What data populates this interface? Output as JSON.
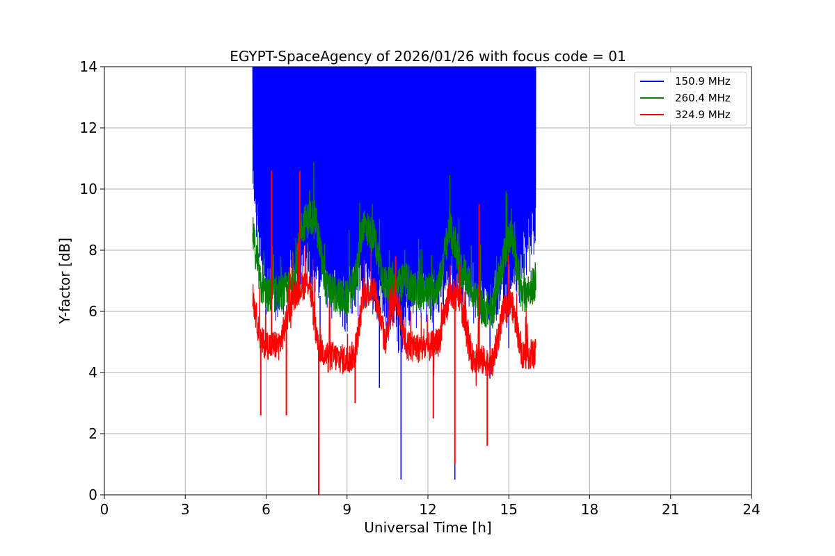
{
  "chart_data": {
    "type": "line",
    "title": "EGYPT-SpaceAgency of 2026/01/26 with focus code = 01",
    "xlabel": "Universal Time [h]",
    "ylabel": "Y-factor [dB]",
    "xlim": [
      0,
      24
    ],
    "ylim": [
      0,
      14
    ],
    "xticks": [
      0,
      3,
      6,
      9,
      12,
      15,
      18,
      21,
      24
    ],
    "yticks": [
      0,
      2,
      4,
      6,
      8,
      10,
      12,
      14
    ],
    "grid": true,
    "legend_position": "top-right",
    "series": [
      {
        "name": "150.9 MHz",
        "color": "#0000ff",
        "x": [
          5.5,
          6.0,
          6.5,
          7.0,
          7.5,
          8.0,
          8.5,
          9.0,
          9.5,
          10.0,
          10.5,
          11.0,
          11.5,
          12.0,
          12.5,
          13.0,
          13.5,
          14.0,
          14.5,
          15.0,
          15.5,
          16.0
        ],
        "low": [
          9.5,
          6.2,
          6.0,
          6.6,
          7.0,
          6.5,
          6.0,
          5.8,
          6.5,
          6.2,
          5.5,
          5.0,
          5.8,
          6.0,
          6.3,
          6.4,
          6.2,
          6.0,
          5.8,
          6.0,
          7.0,
          8.0
        ],
        "high": [
          14,
          14,
          14,
          14,
          14,
          14,
          14,
          14,
          14,
          14,
          14,
          14,
          14,
          14,
          14,
          14,
          14,
          14,
          14,
          14,
          14,
          14
        ],
        "dips": [
          [
            6.0,
            5.9
          ],
          [
            8.0,
            4.5
          ],
          [
            10.2,
            3.5
          ],
          [
            11.0,
            0.5
          ],
          [
            12.2,
            3.6
          ],
          [
            13.0,
            0.5
          ],
          [
            14.3,
            3.8
          ],
          [
            15.0,
            4.8
          ]
        ]
      },
      {
        "name": "260.4 MHz",
        "color": "#008000",
        "x": [
          5.5,
          5.8,
          6.1,
          6.5,
          7.0,
          7.3,
          7.8,
          8.2,
          8.6,
          9.0,
          9.3,
          9.6,
          10.0,
          10.4,
          10.8,
          11.2,
          11.6,
          12.0,
          12.4,
          12.8,
          13.2,
          13.6,
          14.0,
          14.4,
          14.8,
          15.1,
          15.5,
          16.0
        ],
        "y": [
          8.6,
          6.8,
          6.5,
          6.6,
          6.8,
          8.8,
          9.2,
          6.8,
          6.5,
          6.4,
          7.0,
          8.9,
          8.4,
          6.9,
          6.8,
          7.0,
          6.6,
          6.7,
          6.8,
          8.8,
          7.4,
          6.8,
          6.1,
          6.0,
          7.8,
          8.6,
          6.4,
          7.0
        ],
        "spread": 0.6
      },
      {
        "name": "324.9 MHz",
        "color": "#ff0000",
        "x": [
          5.5,
          5.8,
          6.1,
          6.5,
          7.0,
          7.3,
          7.6,
          7.9,
          8.2,
          8.6,
          9.0,
          9.3,
          9.6,
          10.0,
          10.4,
          10.8,
          11.2,
          11.6,
          12.0,
          12.4,
          12.8,
          13.2,
          13.6,
          14.0,
          14.4,
          14.8,
          15.1,
          15.5,
          16.0
        ],
        "y": [
          6.5,
          5.0,
          4.9,
          4.9,
          6.5,
          6.8,
          7.0,
          4.9,
          4.6,
          4.5,
          4.4,
          4.6,
          6.5,
          6.8,
          5.0,
          6.6,
          4.9,
          4.8,
          4.8,
          5.0,
          6.6,
          6.4,
          4.5,
          4.4,
          4.3,
          6.0,
          6.3,
          4.6,
          4.6
        ],
        "spread": 0.5,
        "spikes": [
          [
            5.8,
            2.6
          ],
          [
            6.2,
            10.6
          ],
          [
            6.75,
            2.6
          ],
          [
            7.25,
            10.6
          ],
          [
            7.95,
            0.0
          ],
          [
            8.3,
            4.0
          ],
          [
            9.3,
            3.0
          ],
          [
            10.8,
            7.8
          ],
          [
            12.2,
            2.5
          ],
          [
            13.0,
            1.0
          ],
          [
            13.9,
            9.5
          ],
          [
            14.2,
            1.6
          ]
        ]
      }
    ]
  }
}
